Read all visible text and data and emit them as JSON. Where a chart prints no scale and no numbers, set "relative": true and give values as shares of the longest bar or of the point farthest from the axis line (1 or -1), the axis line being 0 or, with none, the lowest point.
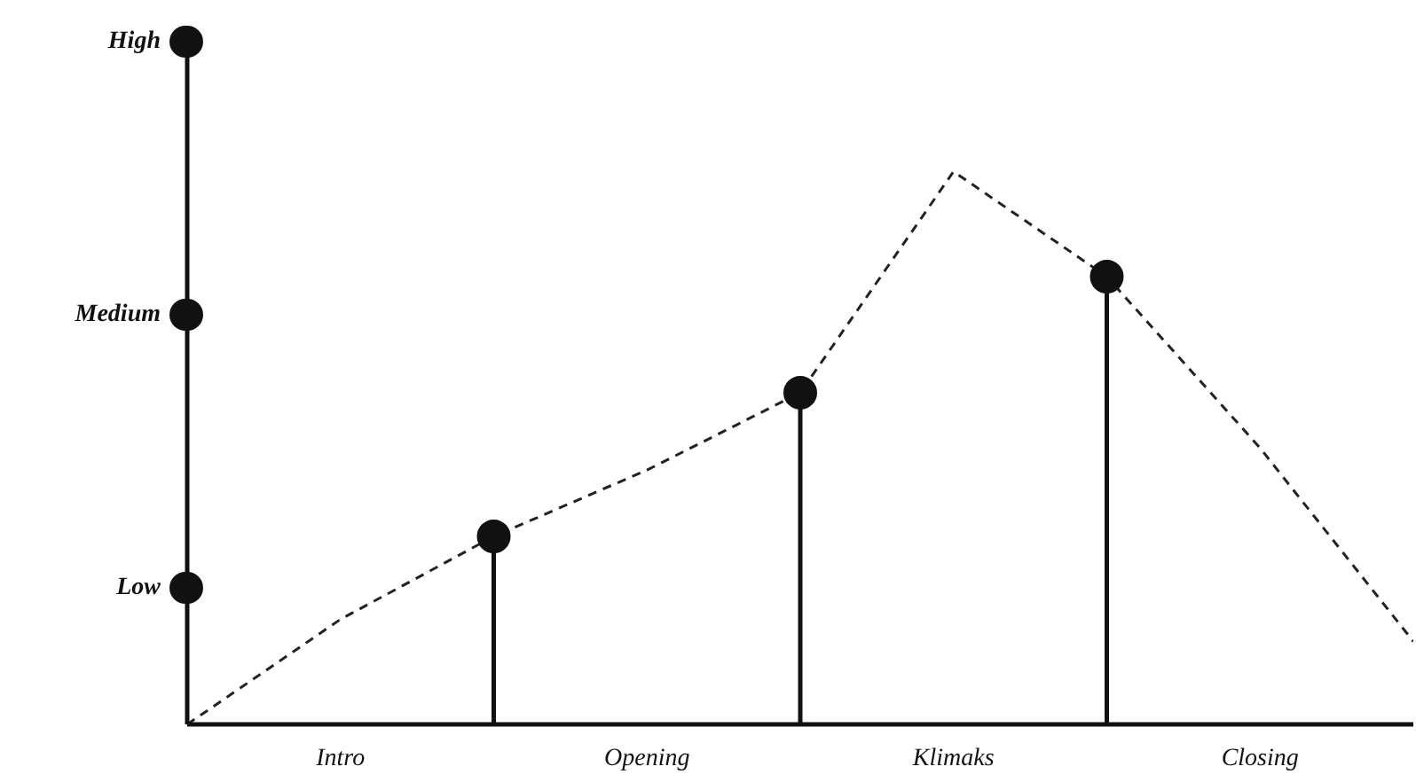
{
  "chart_data": {
    "type": "line",
    "relative": true,
    "categories": [
      null,
      "Intro",
      null,
      "Opening",
      null,
      "Klimaks",
      null,
      "Closing",
      null
    ],
    "annotations": [
      "Low",
      "Medium",
      "High"
    ],
    "series": [
      {
        "line_style": "dashed",
        "marker": "none",
        "color": "#222222",
        "values": [
          0,
          0.19,
          0.34,
          0.46,
          0.6,
          1,
          0.81,
          0.5,
          0.15
        ]
      },
      {
        "type": "lollipop",
        "marker": "circle",
        "color": "#111111",
        "values": [
          null,
          null,
          0.34,
          null,
          0.6,
          null,
          0.81,
          null,
          null
        ]
      }
    ]
  }
}
